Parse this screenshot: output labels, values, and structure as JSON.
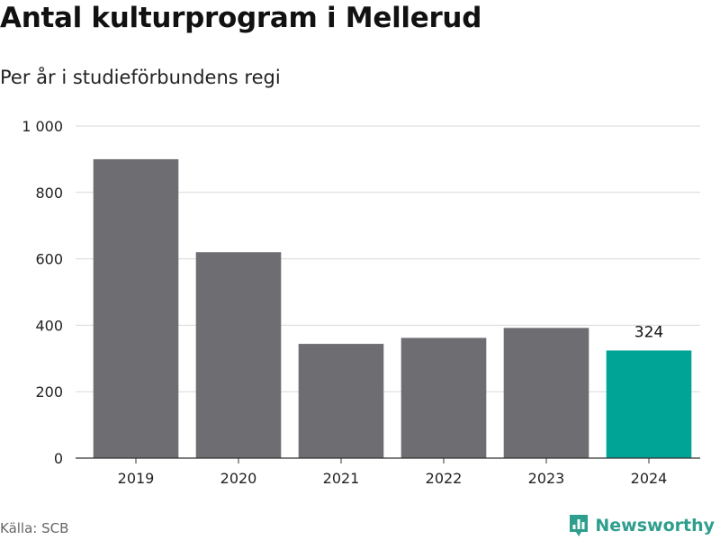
{
  "title": "Antal kulturprogram i Mellerud",
  "subtitle": "Per år i studieförbundens regi",
  "source": "Källa: SCB",
  "brand": "Newsworthy",
  "colors": {
    "bar": "#6e6d72",
    "highlight": "#00a497",
    "grid": "#d9d9d9",
    "axis": "#333333"
  },
  "chart_data": {
    "type": "bar",
    "categories": [
      "2019",
      "2020",
      "2021",
      "2022",
      "2023",
      "2024"
    ],
    "values": [
      900,
      620,
      344,
      362,
      392,
      324
    ],
    "highlight_index": 5,
    "data_labels": [
      null,
      null,
      null,
      null,
      null,
      "324"
    ],
    "ylim": [
      0,
      1000
    ],
    "yticks": [
      0,
      200,
      400,
      600,
      800,
      1000
    ],
    "ytick_labels": [
      "0",
      "200",
      "400",
      "600",
      "800",
      "1 000"
    ],
    "grid": true
  }
}
